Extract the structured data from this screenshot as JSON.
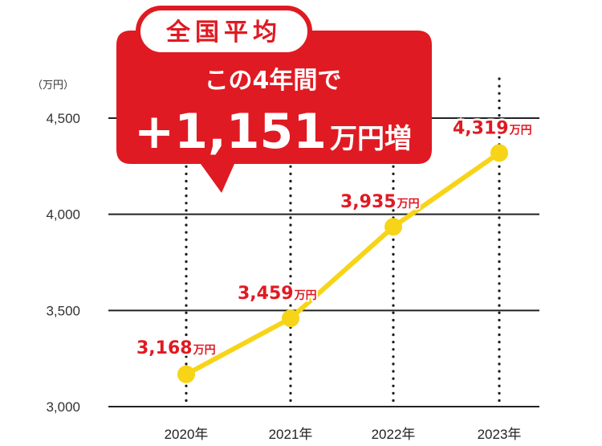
{
  "chart_data": {
    "type": "line",
    "unit_label": "（万円）",
    "categories": [
      "2020年",
      "2021年",
      "2022年",
      "2023年"
    ],
    "values": [
      3168,
      3459,
      3935,
      4319
    ],
    "data_labels": [
      "3,168",
      "3,459",
      "3,935",
      "4,319"
    ],
    "data_label_unit": "万円",
    "yticks": [
      "3,000",
      "3,500",
      "4,000",
      "4,500"
    ],
    "ytick_values": [
      3000,
      3500,
      4000,
      4500
    ],
    "ylim": [
      3000,
      4500
    ],
    "grid": true,
    "colors": {
      "line": "#f7d417",
      "marker": "#f7d417",
      "accent": "#e01a22",
      "grid": "#222222"
    }
  },
  "callout": {
    "pill": "全国平均",
    "line2": "この4年間で",
    "big_value": "+1,151",
    "big_unit": "万円増",
    "color": "#e01a22"
  }
}
